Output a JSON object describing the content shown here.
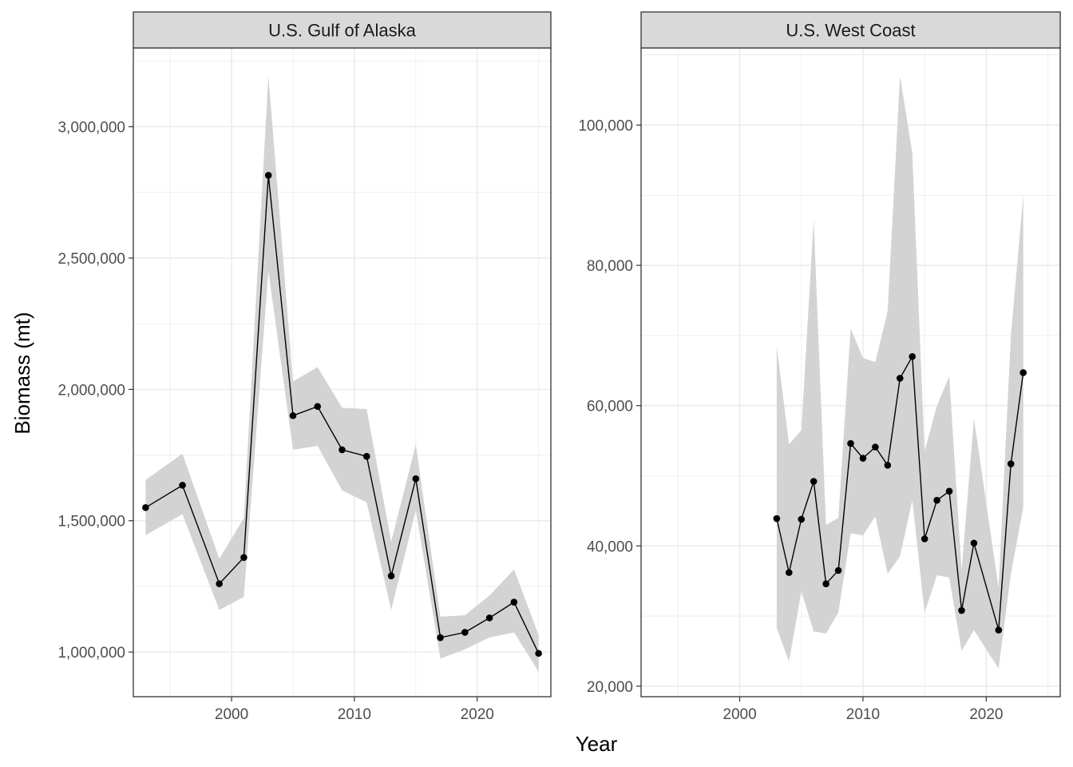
{
  "chart_data": {
    "type": "line",
    "xlabel": "Year",
    "ylabel": "Biomass (mt)",
    "colors": {
      "line": "#000000",
      "ribbon": "#d3d3d3",
      "strip_bg": "#d9d9d9",
      "grid": "#ebebeb"
    },
    "facets": [
      {
        "title": "U.S. Gulf of Alaska",
        "xlim": [
          1992,
          2026
        ],
        "ylim": [
          830000,
          3300000
        ],
        "x_ticks": [
          2000,
          2010,
          2020
        ],
        "x_tick_labels": [
          "2000",
          "2010",
          "2020"
        ],
        "y_ticks": [
          1000000,
          1500000,
          2000000,
          2500000,
          3000000
        ],
        "y_tick_labels": [
          "1,000,000",
          "1,500,000",
          "2,000,000",
          "2,500,000",
          "3,000,000"
        ],
        "series": [
          {
            "x": [
              1993,
              1996,
              1999,
              2001,
              2003,
              2005,
              2007,
              2009,
              2011,
              2013,
              2015,
              2017,
              2019,
              2021,
              2023,
              2025
            ],
            "y": [
              1550000,
              1635000,
              1260000,
              1360000,
              2815000,
              1900000,
              1935000,
              1770000,
              1745000,
              1290000,
              1660000,
              1055000,
              1075000,
              1130000,
              1190000,
              995000
            ],
            "lower": [
              1445000,
              1525000,
              1160000,
              1210000,
              2450000,
              1770000,
              1785000,
              1615000,
              1570000,
              1160000,
              1540000,
              975000,
              1010000,
              1055000,
              1075000,
              925000
            ],
            "upper": [
              1655000,
              1755000,
              1355000,
              1510000,
              3195000,
              2030000,
              2085000,
              1930000,
              1925000,
              1420000,
              1790000,
              1135000,
              1140000,
              1215000,
              1315000,
              1065000
            ]
          }
        ]
      },
      {
        "title": "U.S. West Coast",
        "xlim": [
          1992,
          2026
        ],
        "ylim": [
          18500,
          111000
        ],
        "x_ticks": [
          2000,
          2010,
          2020
        ],
        "x_tick_labels": [
          "2000",
          "2010",
          "2020"
        ],
        "y_ticks": [
          20000,
          40000,
          60000,
          80000,
          100000
        ],
        "y_tick_labels": [
          "20,000",
          "40,000",
          "60,000",
          "80,000",
          "100,000"
        ],
        "series": [
          {
            "x": [
              2003,
              2004,
              2005,
              2006,
              2007,
              2008,
              2009,
              2010,
              2011,
              2012,
              2013,
              2014,
              2015,
              2016,
              2017,
              2018,
              2019,
              2021,
              2022,
              2023
            ],
            "y": [
              43900,
              36200,
              43800,
              49200,
              34600,
              36500,
              54600,
              52500,
              54100,
              51500,
              63900,
              67000,
              41000,
              46500,
              47800,
              30800,
              40400,
              28000,
              51700,
              64700
            ],
            "lower": [
              28300,
              23500,
              33500,
              27800,
              27500,
              30500,
              41800,
              41500,
              44200,
              36000,
              38500,
              46500,
              30500,
              35800,
              35500,
              25000,
              28000,
              22500,
              36000,
              45500
            ],
            "upper": [
              68500,
              54500,
              56500,
              86500,
              43000,
              44000,
              71000,
              66800,
              66200,
              73500,
              107000,
              96000,
              53500,
              60000,
              64200,
              36500,
              58200,
              34000,
              70000,
              90000
            ]
          }
        ]
      }
    ]
  }
}
